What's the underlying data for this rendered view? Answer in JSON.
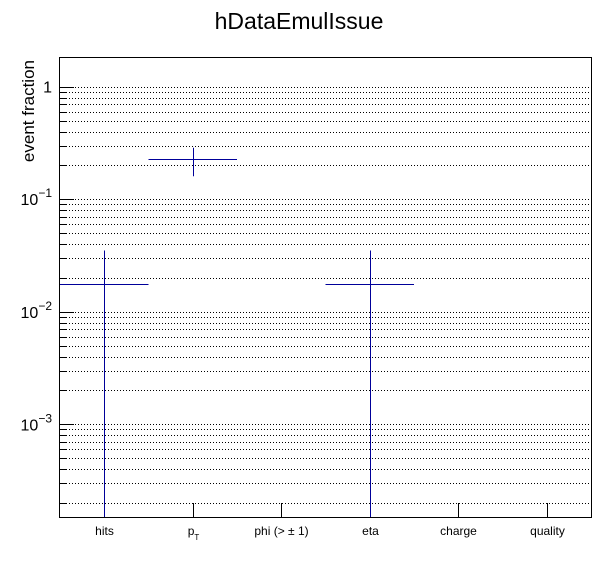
{
  "chart_data": {
    "type": "scatter",
    "title": "hDataEmulIssue",
    "ylabel": "event fraction",
    "xlabel": "",
    "yscale": "log",
    "ylim": [
      0.00015,
      1.8
    ],
    "grid": true,
    "marker_color": "#000099",
    "categories": [
      "hits",
      "p_T",
      "phi (> ± 1)",
      "eta",
      "charge",
      "quality"
    ],
    "category_labels": [
      {
        "main": "hits",
        "sub": ""
      },
      {
        "main": "p",
        "sub": "T"
      },
      {
        "main": "phi (> ± 1)",
        "sub": ""
      },
      {
        "main": "eta",
        "sub": ""
      },
      {
        "main": "charge",
        "sub": ""
      },
      {
        "main": "quality",
        "sub": ""
      }
    ],
    "y_ticks": [
      {
        "base": "1",
        "exp": ""
      },
      {
        "base": "10",
        "exp": "−1"
      },
      {
        "base": "10",
        "exp": "−2"
      },
      {
        "base": "10",
        "exp": "−3"
      }
    ],
    "series": [
      {
        "points": [
          {
            "category": "hits",
            "value": 0.0175,
            "err_low": 0.0175,
            "err_high": 0.0175
          },
          {
            "category": "p_T",
            "value": 0.228,
            "err_low": 0.068,
            "err_high": 0.059
          },
          {
            "category": "eta",
            "value": 0.0175,
            "err_low": 0.0175,
            "err_high": 0.0175
          }
        ]
      }
    ]
  }
}
